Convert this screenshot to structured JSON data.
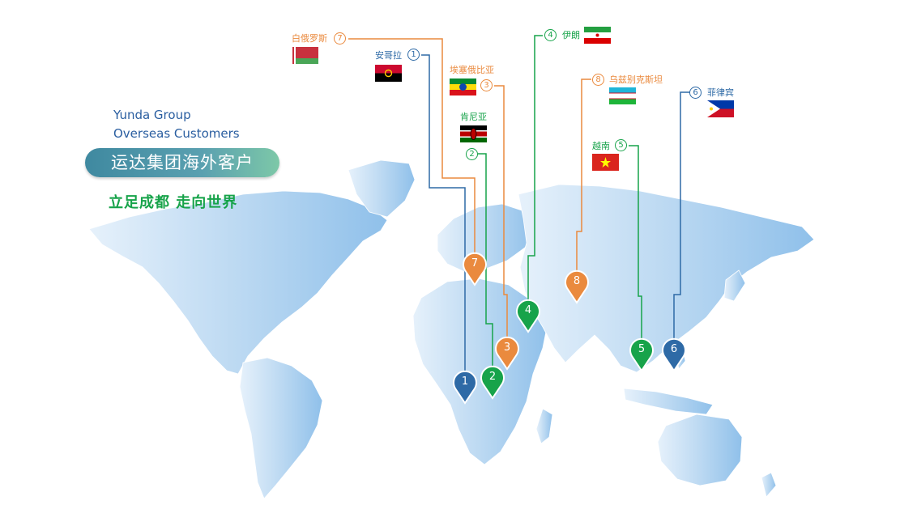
{
  "header": {
    "english_line1": "Yunda Group",
    "english_line2": "Overseas Customers",
    "banner": "运达集团海外客户",
    "slogan": "立足成都 走向世界"
  },
  "colors": {
    "blue": "#2e6aa6",
    "green": "#17a34a",
    "orange": "#ea8a3e",
    "map": "#b7d6f0"
  },
  "countries": [
    {
      "number": "1",
      "name": "安哥拉",
      "color": "blue"
    },
    {
      "number": "2",
      "name": "肯尼亚",
      "color": "green"
    },
    {
      "number": "3",
      "name": "埃塞俄比亚",
      "color": "orange"
    },
    {
      "number": "4",
      "name": "伊朗",
      "color": "green"
    },
    {
      "number": "5",
      "name": "越南",
      "color": "green"
    },
    {
      "number": "6",
      "name": "菲律宾",
      "color": "blue"
    },
    {
      "number": "7",
      "name": "白俄罗斯",
      "color": "orange"
    },
    {
      "number": "8",
      "name": "乌兹别克斯坦",
      "color": "orange"
    }
  ]
}
